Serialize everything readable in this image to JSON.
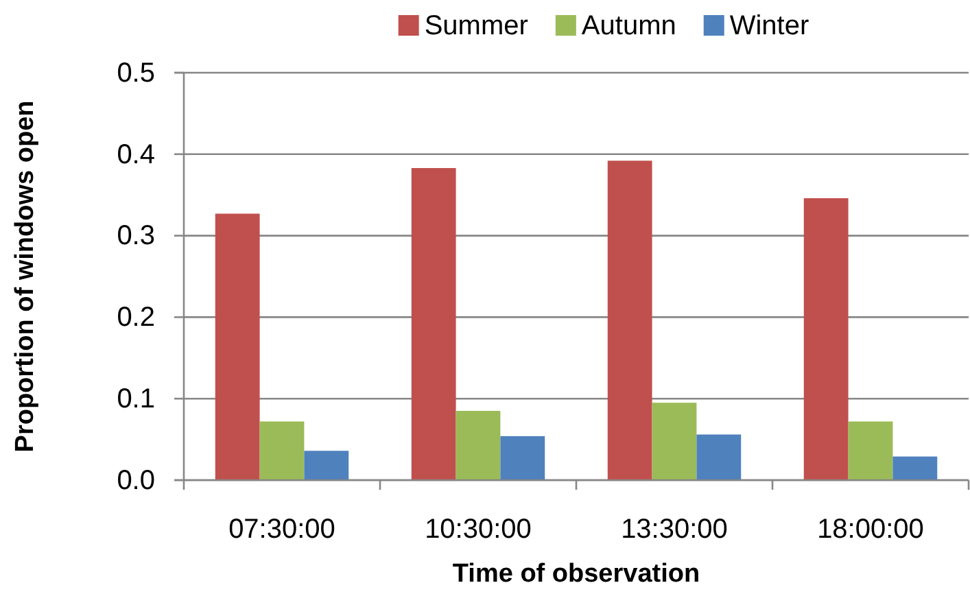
{
  "chart_data": {
    "type": "bar",
    "xlabel": "Time of observation",
    "ylabel": "Proportion of windows open",
    "categories": [
      "07:30:00",
      "10:30:00",
      "13:30:00",
      "18:00:00"
    ],
    "series": [
      {
        "name": "Summer",
        "color": "#c0504d",
        "values": [
          0.327,
          0.383,
          0.392,
          0.346
        ]
      },
      {
        "name": "Autumn",
        "color": "#9bbb59",
        "values": [
          0.072,
          0.085,
          0.095,
          0.072
        ]
      },
      {
        "name": "Winter",
        "color": "#4f81bd",
        "values": [
          0.036,
          0.054,
          0.056,
          0.029
        ]
      }
    ],
    "ylim": [
      0,
      0.5
    ],
    "yticks": [
      {
        "value": 0,
        "label": "0.0"
      },
      0.1,
      0.2,
      0.3,
      0.4,
      0.5
    ],
    "grid": "y",
    "legend": "top"
  }
}
